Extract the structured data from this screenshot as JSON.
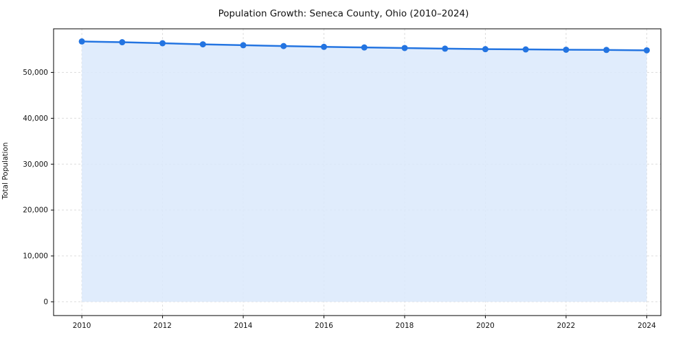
{
  "chart": {
    "title": "Population Growth: Seneca County, Ohio (2010–2024)",
    "ylabel": "Total Population"
  },
  "chart_data": {
    "type": "line",
    "title": "Population Growth: Seneca County, Ohio (2010–2024)",
    "xlabel": "",
    "ylabel": "Total Population",
    "x": [
      2010,
      2011,
      2012,
      2013,
      2014,
      2015,
      2016,
      2017,
      2018,
      2019,
      2020,
      2021,
      2022,
      2023,
      2024
    ],
    "series": [
      {
        "name": "Total Population",
        "values": [
          56745,
          56580,
          56357,
          56120,
          55929,
          55743,
          55571,
          55440,
          55322,
          55178,
          55069,
          55012,
          54942,
          54896,
          54811
        ]
      }
    ],
    "x_ticks": [
      2010,
      2012,
      2014,
      2016,
      2018,
      2020,
      2022,
      2024
    ],
    "y_ticks": [
      0,
      10000,
      20000,
      30000,
      40000,
      50000
    ],
    "xlim": [
      2009.3,
      2024.35
    ],
    "ylim": [
      -3000,
      59500
    ],
    "grid": true,
    "legend": "none",
    "line_color": "#2374e1",
    "fill_color": "#dbe9fb",
    "grid_color": "#dcdcdc",
    "axis_color": "#000000",
    "marker": "circle"
  }
}
